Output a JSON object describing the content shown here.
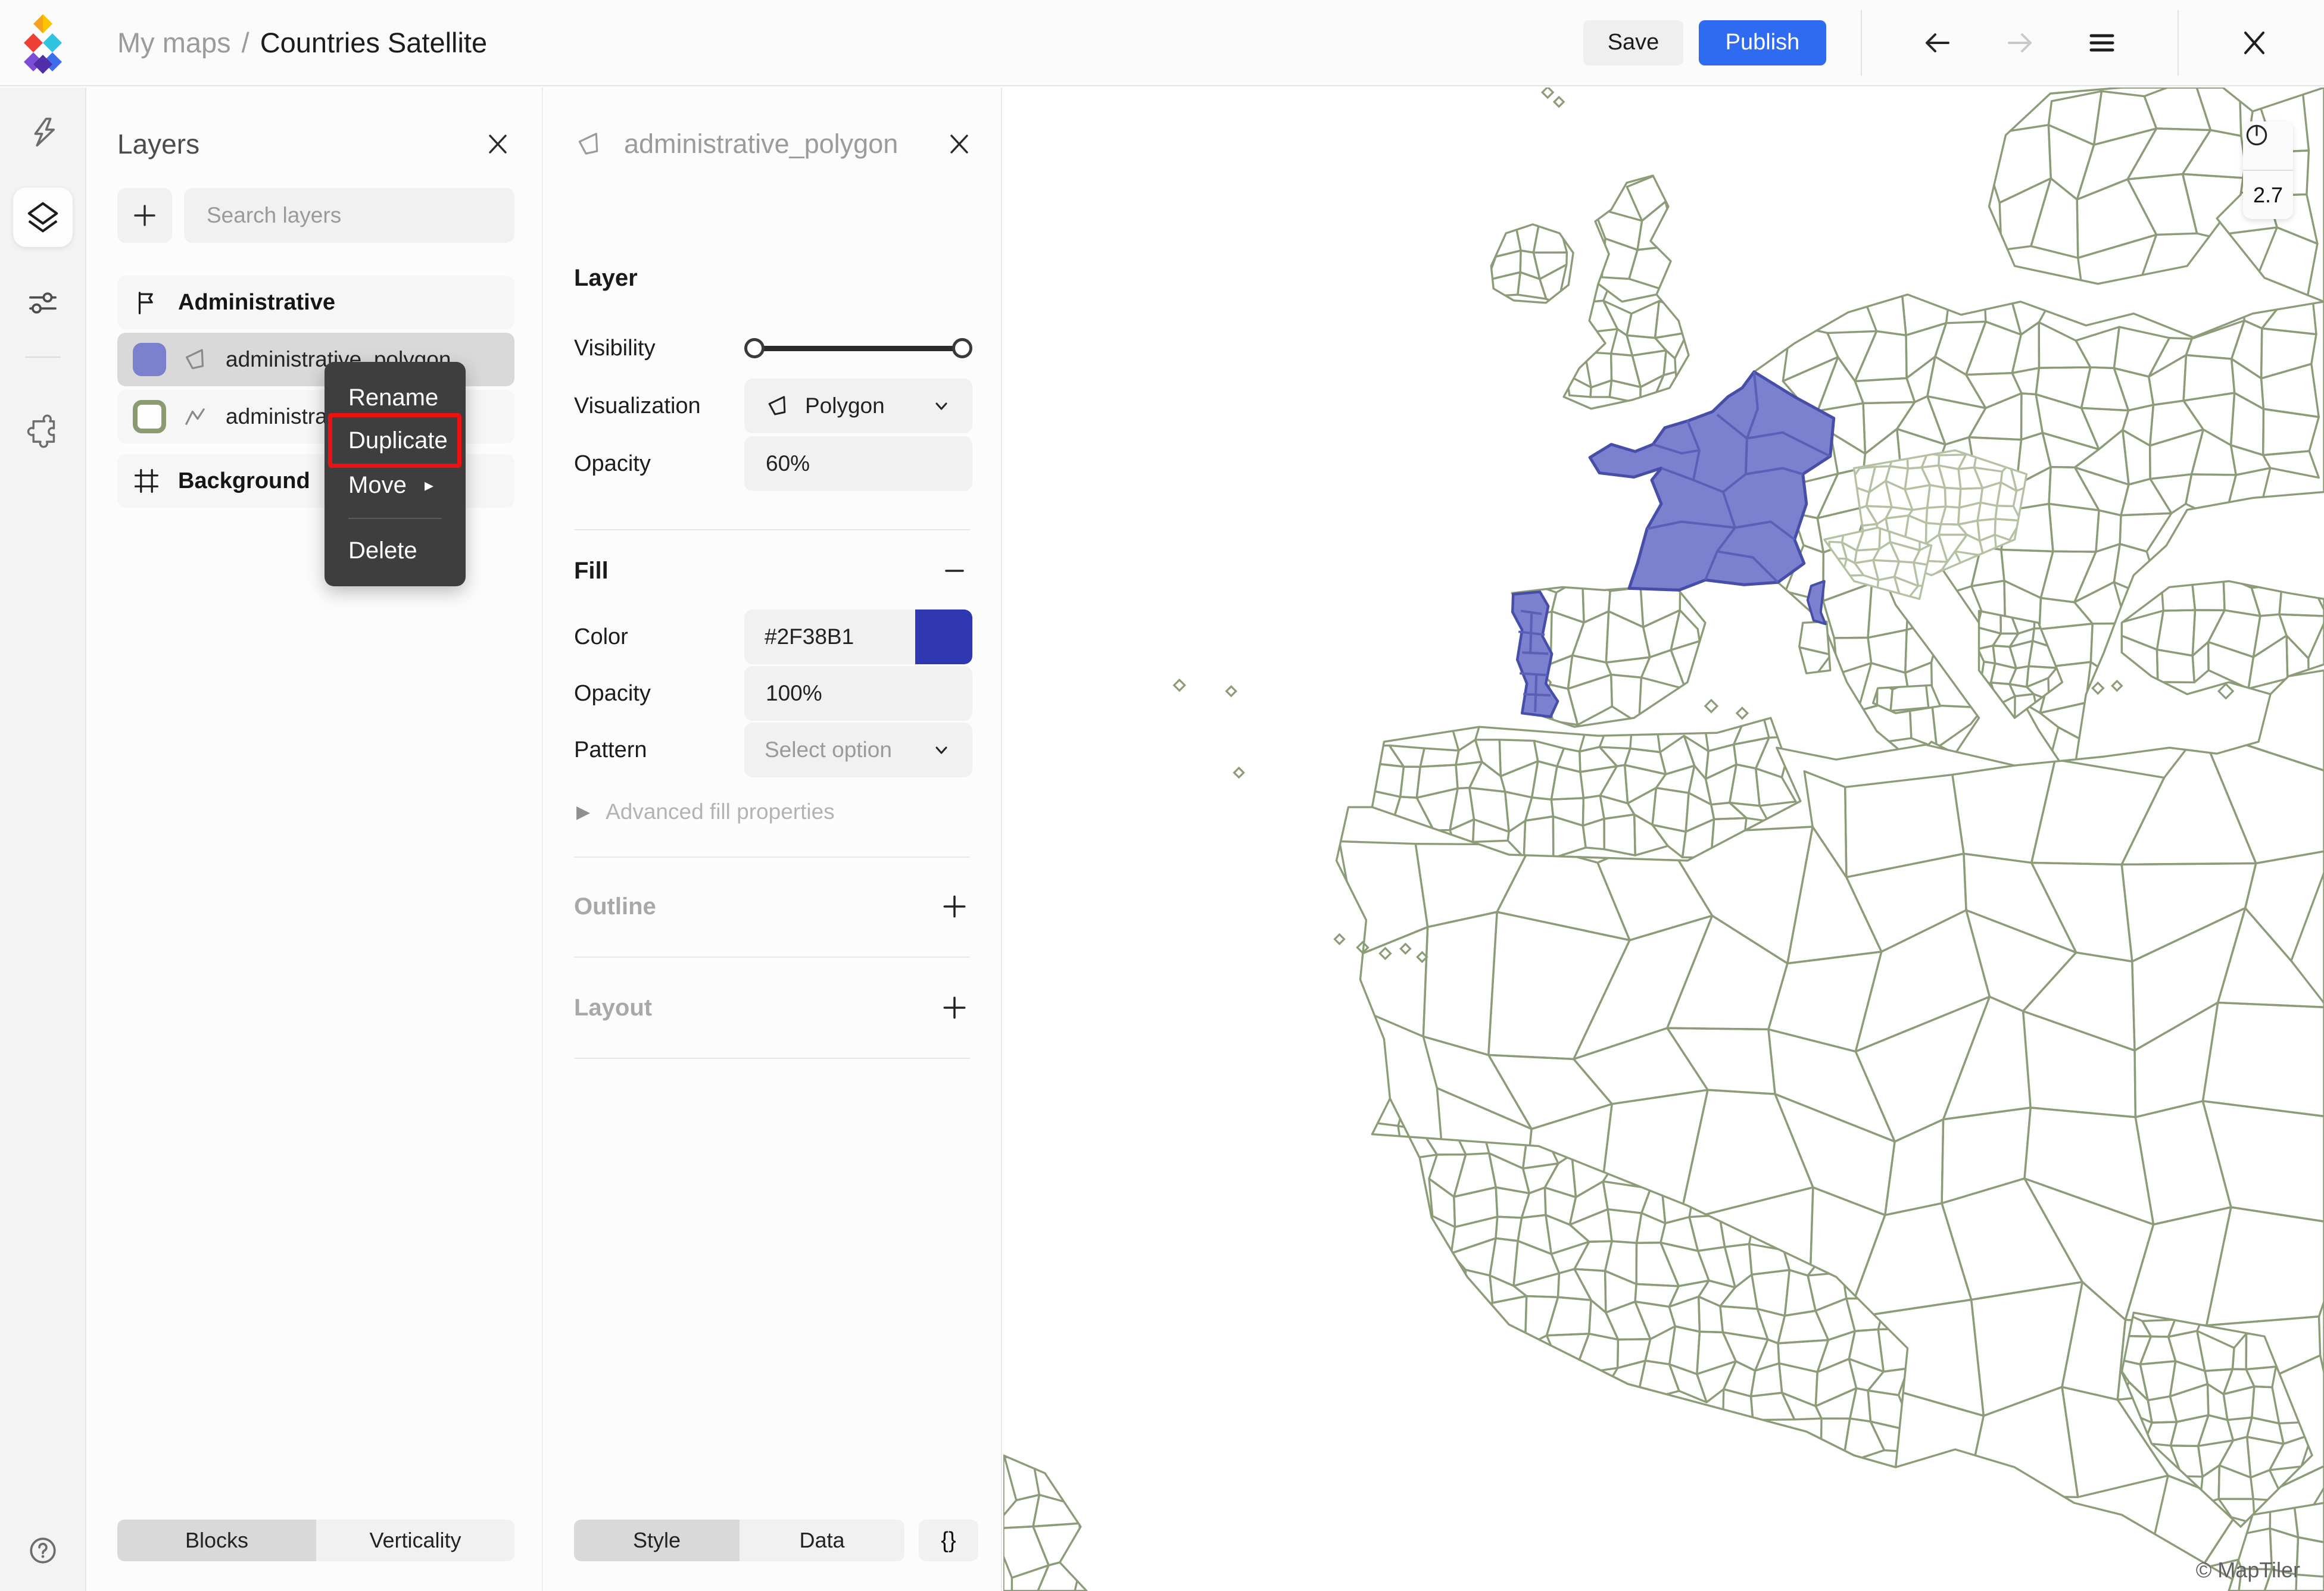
{
  "topbar": {
    "breadcrumb_root": "My maps",
    "breadcrumb_sep": "/",
    "breadcrumb_current": "Countries Satellite",
    "save_label": "Save",
    "publish_label": "Publish"
  },
  "layers_panel": {
    "title": "Layers",
    "search_placeholder": "Search layers",
    "group_administrative": "Administrative",
    "group_background": "Background",
    "layers": [
      {
        "name": "administrative_polygon",
        "swatch_color": "#7B80CF",
        "selected": true
      },
      {
        "name": "administrative_line",
        "swatch_outline": "#8A9B72",
        "selected": false
      }
    ],
    "tabs": {
      "blocks": "Blocks",
      "verticality": "Verticality"
    }
  },
  "context_menu": {
    "items": {
      "rename": "Rename",
      "duplicate": "Duplicate",
      "move": "Move",
      "delete": "Delete"
    },
    "highlighted_item": "Duplicate",
    "highlight_color": "#EC1212"
  },
  "props_panel": {
    "title": "administrative_polygon",
    "layer_section": {
      "label": "Layer",
      "visibility_label": "Visibility",
      "visualization_label": "Visualization",
      "visualization_value": "Polygon",
      "opacity_label": "Opacity",
      "opacity_value": "60%"
    },
    "fill_section": {
      "label": "Fill",
      "color_label": "Color",
      "color_value": "#2F38B1",
      "opacity_label": "Opacity",
      "opacity_value": "100%",
      "pattern_label": "Pattern",
      "pattern_placeholder": "Select option",
      "advanced_label": "Advanced fill properties"
    },
    "outline_section": {
      "label": "Outline"
    },
    "layout_section": {
      "label": "Layout"
    },
    "tabs": {
      "style": "Style",
      "data": "Data",
      "code": "{}"
    }
  },
  "map": {
    "zoom_level": "2.7",
    "copyright": "© MapTiler",
    "line_color": "#8C9B78",
    "line_color_light": "#B5C1A2",
    "selection_fill": "#7B80CF",
    "selection_stroke": "#474EA8",
    "selection_inner_stroke": "#5A60B8",
    "background_color": "#FFFFFF"
  }
}
